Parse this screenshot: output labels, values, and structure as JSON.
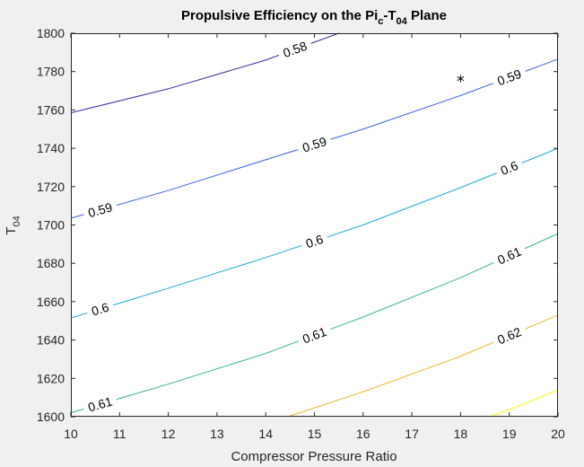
{
  "chart_data": {
    "type": "contour",
    "title": "Propulsive Efficiency on the Pi",
    "title_parts": {
      "base1": "Propulsive Efficiency on the Pi",
      "sub1": "c",
      "mid": "-T",
      "sub2": "04",
      "tail": " Plane"
    },
    "xlabel": "Compressor Pressure Ratio",
    "ylabel": "T",
    "ylabel_sub": "04",
    "xlim": [
      10,
      20
    ],
    "ylim": [
      1600,
      1800
    ],
    "xticks": [
      "10",
      "11",
      "12",
      "13",
      "14",
      "15",
      "16",
      "17",
      "18",
      "19",
      "20"
    ],
    "yticks": [
      "1600",
      "1620",
      "1640",
      "1660",
      "1680",
      "1700",
      "1720",
      "1740",
      "1760",
      "1780",
      "1800"
    ],
    "grid": false,
    "series": [
      {
        "level": "0.58",
        "color": "#3d26a8",
        "points": [
          [
            10,
            1758.5
          ],
          [
            12,
            1771
          ],
          [
            14,
            1786
          ],
          [
            15.5,
            1800
          ]
        ],
        "labels": [
          {
            "x": 14.6,
            "at": 0.62
          }
        ]
      },
      {
        "level": "0.59",
        "color": "#3a5ee6",
        "points": [
          [
            10,
            1703.5
          ],
          [
            12,
            1718
          ],
          [
            14,
            1734
          ],
          [
            16,
            1750
          ],
          [
            18,
            1767.5
          ],
          [
            20,
            1786.5
          ]
        ],
        "labels": [
          {
            "x": 10.6
          },
          {
            "x": 15.0
          },
          {
            "x": 19.0
          }
        ]
      },
      {
        "level": "0.6",
        "color": "#1aa7dd",
        "points": [
          [
            10,
            1651.5
          ],
          [
            12,
            1667
          ],
          [
            14,
            1683
          ],
          [
            16,
            1700
          ],
          [
            18,
            1719.5
          ],
          [
            20,
            1740
          ]
        ],
        "labels": [
          {
            "x": 10.6
          },
          {
            "x": 15.0
          },
          {
            "x": 19.0
          }
        ]
      },
      {
        "level": "0.61",
        "color": "#33b87a",
        "points": [
          [
            10,
            1602
          ],
          [
            12,
            1617
          ],
          [
            14,
            1633
          ],
          [
            16,
            1652
          ],
          [
            18,
            1672.5
          ],
          [
            20,
            1695.5
          ]
        ],
        "labels": [
          {
            "x": 10.6
          },
          {
            "x": 15.0
          },
          {
            "x": 19.0
          }
        ]
      },
      {
        "level": "0.62",
        "color": "#f0b42a",
        "points": [
          [
            14.45,
            1600
          ],
          [
            16,
            1613
          ],
          [
            18,
            1631.5
          ],
          [
            20,
            1653
          ]
        ],
        "labels": [
          {
            "x": 19.0
          }
        ]
      },
      {
        "level": "",
        "color": "#f9fb0e",
        "points": [
          [
            18.6,
            1600
          ],
          [
            19.3,
            1606.5
          ],
          [
            20,
            1614
          ]
        ],
        "labels": []
      }
    ],
    "marker": {
      "x": 18.0,
      "y": 1775,
      "symbol": "*"
    }
  }
}
